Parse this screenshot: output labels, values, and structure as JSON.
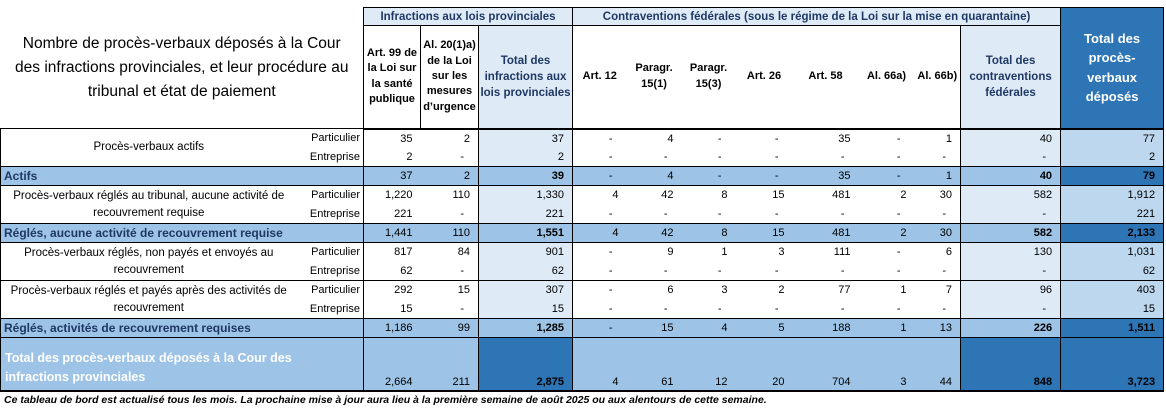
{
  "title": "Nombre de procès-verbaux déposés à la Cour des infractions provinciales, et leur procédure au tribunal et état de paiement",
  "colors": {
    "dark_blue": "#2E75B6",
    "band_blue": "#9DC3E6",
    "light_blue": "#DEEBF7",
    "total_col_blue": "#BDD7EE",
    "navy_text": "#1F3864"
  },
  "chart_data": {
    "type": "table",
    "column_groups": [
      "Infractions aux lois provinciales",
      "Contraventions fédérales (sous le régime de la Loi sur la mise en quarantaine)"
    ],
    "columns": [
      "Art. 99 de la Loi sur la santé publique",
      "Al. 20(1)a) de la Loi sur les mesures d’urgence",
      "Total des infractions aux lois provinciales",
      "Art. 12",
      "Paragr. 15(1)",
      "Paragr. 15(3)",
      "Art. 26",
      "Art. 58",
      "Al. 66a)",
      "Al. 66b)",
      "Total des contraventions fédérales",
      "Total des procès-verbaux déposés"
    ],
    "rows": [
      {
        "type": "pair",
        "label": "Procès-verbaux actifs",
        "sub": [
          {
            "name": "Particulier",
            "values": [
              "35",
              "2",
              "37",
              "-",
              "4",
              "-",
              "-",
              "35",
              "-",
              "1",
              "40",
              "77"
            ]
          },
          {
            "name": "Entreprise",
            "values": [
              "2",
              "-",
              "2",
              "-",
              "-",
              "-",
              "-",
              "-",
              "-",
              "-",
              "-",
              "2"
            ]
          }
        ]
      },
      {
        "type": "summary",
        "label": "Actifs",
        "values": [
          "37",
          "2",
          "39",
          "-",
          "4",
          "-",
          "-",
          "35",
          "-",
          "1",
          "40",
          "79"
        ]
      },
      {
        "type": "pair",
        "label": "Procès-verbaux réglés au tribunal, aucune activité de recouvrement requise",
        "sub": [
          {
            "name": "Particulier",
            "values": [
              "1,220",
              "110",
              "1,330",
              "4",
              "42",
              "8",
              "15",
              "481",
              "2",
              "30",
              "582",
              "1,912"
            ]
          },
          {
            "name": "Entreprise",
            "values": [
              "221",
              "-",
              "221",
              "-",
              "-",
              "-",
              "-",
              "-",
              "-",
              "-",
              "-",
              "221"
            ]
          }
        ]
      },
      {
        "type": "summary",
        "label": "Réglés, aucune activité de recouvrement requise",
        "values": [
          "1,441",
          "110",
          "1,551",
          "4",
          "42",
          "8",
          "15",
          "481",
          "2",
          "30",
          "582",
          "2,133"
        ]
      },
      {
        "type": "pair",
        "label": "Procès-verbaux réglés, non payés et envoyés au recouvrement",
        "sub": [
          {
            "name": "Particulier",
            "values": [
              "817",
              "84",
              "901",
              "-",
              "9",
              "1",
              "3",
              "111",
              "-",
              "6",
              "130",
              "1,031"
            ]
          },
          {
            "name": "Entreprise",
            "values": [
              "62",
              "-",
              "62",
              "-",
              "-",
              "-",
              "-",
              "-",
              "-",
              "-",
              "-",
              "62"
            ]
          }
        ]
      },
      {
        "type": "pair",
        "label": "Procès-verbaux réglés et payés après des activités de recouvrement",
        "sub": [
          {
            "name": "Particulier",
            "values": [
              "292",
              "15",
              "307",
              "-",
              "6",
              "3",
              "2",
              "77",
              "1",
              "7",
              "96",
              "403"
            ]
          },
          {
            "name": "Entreprise",
            "values": [
              "15",
              "-",
              "15",
              "-",
              "-",
              "-",
              "-",
              "-",
              "-",
              "-",
              "-",
              "15"
            ]
          }
        ]
      },
      {
        "type": "summary",
        "label": "Réglés, activités de recouvrement requises",
        "values": [
          "1,186",
          "99",
          "1,285",
          "-",
          "15",
          "4",
          "5",
          "188",
          "1",
          "13",
          "226",
          "1,511"
        ]
      },
      {
        "type": "total",
        "label": "Total des procès-verbaux déposés à la Cour des infractions provinciales",
        "values": [
          "2,664",
          "211",
          "2,875",
          "4",
          "61",
          "12",
          "20",
          "704",
          "3",
          "44",
          "848",
          "3,723"
        ]
      }
    ]
  },
  "footer": "Ce tableau de bord est actualisé tous les mois. La prochaine mise à jour aura lieu à la première semaine de août 2025 ou aux alentours de cette semaine."
}
